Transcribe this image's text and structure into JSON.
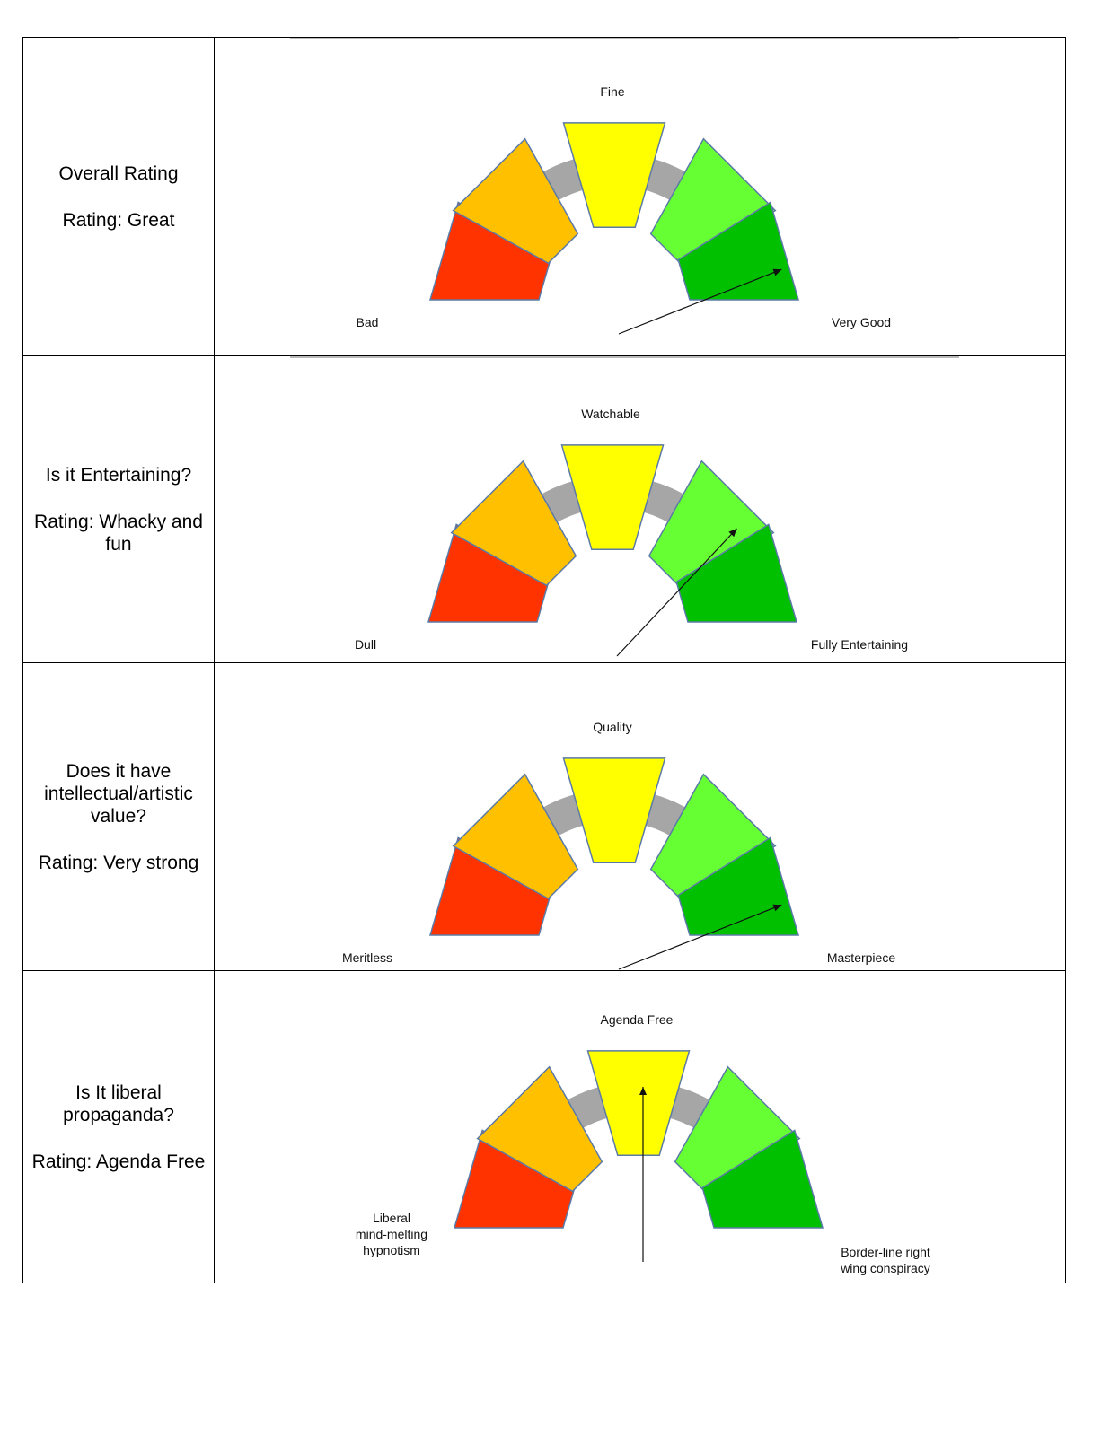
{
  "rows": [
    {
      "question": "Overall Rating",
      "rating": "Rating: Great",
      "labels": {
        "left": [
          "Bad"
        ],
        "top": [
          "Fine"
        ],
        "right": [
          "Very Good"
        ]
      }
    },
    {
      "question": "Is it Entertaining?",
      "rating": "Rating: Whacky and fun",
      "labels": {
        "left": [
          "Dull"
        ],
        "top": [
          "Watchable"
        ],
        "right": [
          "Fully Entertaining"
        ]
      }
    },
    {
      "question": "Does it have intellectual/artistic value?",
      "rating": "Rating: Very strong",
      "labels": {
        "left": [
          "Meritless"
        ],
        "top": [
          "Quality"
        ],
        "right": [
          "Masterpiece"
        ]
      }
    },
    {
      "question": "Is It liberal propaganda?",
      "rating": "Rating: Agenda Free",
      "labels": {
        "left": [
          "Liberal",
          "mind-melting",
          "hypnotism"
        ],
        "top": [
          "Agenda Free"
        ],
        "right": [
          "Border-line right",
          "wing conspiracy"
        ]
      }
    }
  ],
  "chart_data": [
    {
      "type": "gauge",
      "segments": 5,
      "needle_value": 4.4,
      "scale": [
        0,
        5
      ]
    },
    {
      "type": "gauge",
      "segments": 5,
      "needle_value": 3.7,
      "scale": [
        0,
        5
      ]
    },
    {
      "type": "gauge",
      "segments": 5,
      "needle_value": 4.4,
      "scale": [
        0,
        5
      ]
    },
    {
      "type": "gauge",
      "segments": 5,
      "needle_value": 2.5,
      "scale": [
        0,
        5
      ]
    }
  ],
  "colors": {
    "segments": [
      "#ff3300",
      "#ffc000",
      "#ffff00",
      "#66ff33",
      "#00c000"
    ],
    "track": "#a6a6a6",
    "segment_stroke": "#5b7aa6",
    "needle": "#111111"
  }
}
